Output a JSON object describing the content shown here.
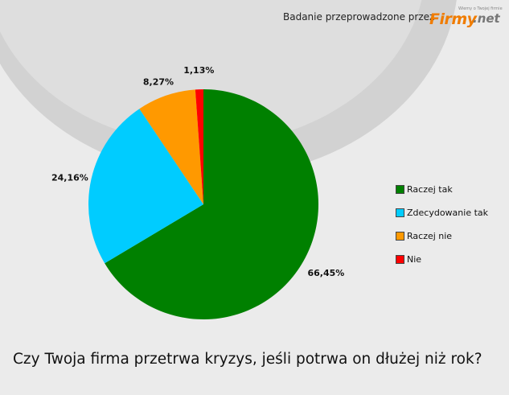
{
  "credit_text": "Badanie przeprowadzone przez",
  "logo": {
    "tagline": "Wiemy o Twojej firmie",
    "brand": "Firmy",
    "suffix": ".net"
  },
  "question": "Czy Twoja firma przetrwa kryzys, jeśli potrwa on dłużej niż rok?",
  "chart_data": {
    "type": "pie",
    "title": "",
    "legend_position": "right",
    "slices": [
      {
        "label": "Raczej tak",
        "value": 66.45,
        "display": "66,45%",
        "color": "#008000"
      },
      {
        "label": "Zdecydowanie tak",
        "value": 24.16,
        "display": "24,16%",
        "color": "#00ccff"
      },
      {
        "label": "Raczej nie",
        "value": 8.27,
        "display": "8,27%",
        "color": "#ff9900"
      },
      {
        "label": "Nie",
        "value": 1.13,
        "display": "1,13%",
        "color": "#ff0000"
      }
    ]
  }
}
